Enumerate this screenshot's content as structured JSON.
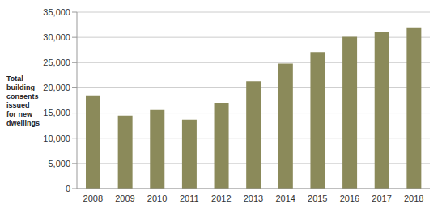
{
  "chart_data": {
    "type": "bar",
    "y_label": "Total building consents issued for new dwellings",
    "categories": [
      "2008",
      "2009",
      "2010",
      "2011",
      "2012",
      "2013",
      "2014",
      "2015",
      "2016",
      "2017",
      "2018"
    ],
    "values": [
      18500,
      14500,
      15600,
      13700,
      17000,
      21300,
      24800,
      27100,
      30100,
      31000,
      32000
    ],
    "color": "#8b8a5a",
    "ylim": [
      0,
      35000
    ],
    "yticks": [
      0,
      {
        "value": 5000,
        "label": "5,000"
      },
      {
        "value": 10000,
        "label": "10,000"
      },
      {
        "value": 15000,
        "label": "15,000"
      },
      {
        "value": 20000,
        "label": "20,000"
      },
      {
        "value": 25000,
        "label": "25,000"
      },
      {
        "value": 30000,
        "label": "30,000"
      },
      {
        "value": 35000,
        "label": "35,000"
      }
    ],
    "grid": true
  }
}
